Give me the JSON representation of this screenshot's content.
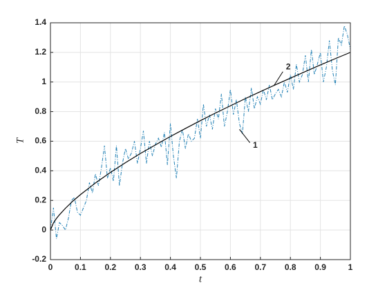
{
  "chart_data": {
    "type": "line",
    "xlabel": "t",
    "ylabel": "T",
    "xlim": [
      0,
      1
    ],
    "ylim": [
      -0.2,
      1.4
    ],
    "xticks": [
      0,
      0.1,
      0.2,
      0.3,
      0.4,
      0.5,
      0.6,
      0.7,
      0.8,
      0.9,
      1
    ],
    "yticks": [
      -0.2,
      0,
      0.2,
      0.4,
      0.6,
      0.8,
      1,
      1.2,
      1.4
    ],
    "grid": true,
    "series": [
      {
        "name": "1",
        "color": "#1f7fb4",
        "style": "dashdot",
        "x": [
          0,
          0.01,
          0.02,
          0.03,
          0.04,
          0.05,
          0.06,
          0.07,
          0.08,
          0.09,
          0.1,
          0.11,
          0.12,
          0.13,
          0.14,
          0.15,
          0.16,
          0.17,
          0.18,
          0.19,
          0.2,
          0.21,
          0.22,
          0.23,
          0.24,
          0.25,
          0.26,
          0.27,
          0.28,
          0.29,
          0.3,
          0.31,
          0.32,
          0.33,
          0.34,
          0.35,
          0.36,
          0.37,
          0.38,
          0.39,
          0.4,
          0.41,
          0.42,
          0.43,
          0.44,
          0.45,
          0.46,
          0.47,
          0.48,
          0.49,
          0.5,
          0.51,
          0.52,
          0.53,
          0.54,
          0.55,
          0.56,
          0.57,
          0.58,
          0.59,
          0.6,
          0.61,
          0.62,
          0.63,
          0.64,
          0.65,
          0.66,
          0.67,
          0.68,
          0.69,
          0.7,
          0.71,
          0.72,
          0.73,
          0.74,
          0.75,
          0.76,
          0.77,
          0.78,
          0.79,
          0.8,
          0.81,
          0.82,
          0.83,
          0.84,
          0.85,
          0.86,
          0.87,
          0.88,
          0.89,
          0.9,
          0.91,
          0.92,
          0.93,
          0.94,
          0.95,
          0.96,
          0.97,
          0.98,
          0.99,
          1
        ],
        "values": [
          0,
          0.15,
          -0.06,
          0.05,
          0.03,
          0,
          0.08,
          0.2,
          0.22,
          0.12,
          0.1,
          0.15,
          0.2,
          0.32,
          0.25,
          0.38,
          0.3,
          0.42,
          0.57,
          0.35,
          0.42,
          0.33,
          0.57,
          0.3,
          0.45,
          0.55,
          0.48,
          0.52,
          0.6,
          0.45,
          0.55,
          0.67,
          0.45,
          0.6,
          0.5,
          0.58,
          0.62,
          0.56,
          0.66,
          0.44,
          0.72,
          0.5,
          0.35,
          0.6,
          0.68,
          0.55,
          0.65,
          0.6,
          0.62,
          0.75,
          0.62,
          0.85,
          0.7,
          0.78,
          0.68,
          0.82,
          0.75,
          0.92,
          0.7,
          0.8,
          0.95,
          0.78,
          0.88,
          0.72,
          0.65,
          0.9,
          0.8,
          0.96,
          0.82,
          0.9,
          0.85,
          0.95,
          0.88,
          0.98,
          0.88,
          0.92,
          0.95,
          0.9,
          1,
          0.93,
          1.05,
          0.95,
          1.12,
          1,
          1.05,
          1.18,
          1,
          1.22,
          1.05,
          1.12,
          1.2,
          1,
          1.1,
          1.28,
          1.08,
          0.98,
          1.3,
          1.25,
          1.38,
          1.32,
          1.22
        ]
      },
      {
        "name": "2",
        "color": "#000000",
        "style": "solid",
        "x": [
          0,
          0.01,
          0.02,
          0.03,
          0.05,
          0.075,
          0.1,
          0.15,
          0.2,
          0.25,
          0.3,
          0.35,
          0.4,
          0.45,
          0.5,
          0.55,
          0.6,
          0.65,
          0.7,
          0.75,
          0.8,
          0.85,
          0.9,
          0.95,
          1
        ],
        "values": [
          0,
          0.048,
          0.078,
          0.103,
          0.147,
          0.196,
          0.239,
          0.318,
          0.389,
          0.455,
          0.517,
          0.575,
          0.632,
          0.686,
          0.739,
          0.79,
          0.839,
          0.888,
          0.935,
          0.981,
          1.026,
          1.071,
          1.115,
          1.158,
          1.2
        ]
      }
    ]
  }
}
